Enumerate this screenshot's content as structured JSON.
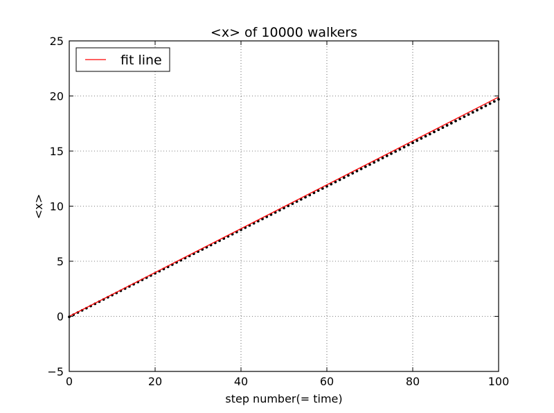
{
  "chart_data": {
    "type": "line",
    "title": "<x> of 10000 walkers",
    "xlabel": "step number(= time)",
    "ylabel": "<x>",
    "xlim": [
      0,
      100
    ],
    "ylim": [
      -5,
      25
    ],
    "xticks": [
      "0",
      "20",
      "40",
      "60",
      "80",
      "100"
    ],
    "yticks": [
      "−5",
      "0",
      "5",
      "10",
      "15",
      "20",
      "25"
    ],
    "grid": true,
    "legend": {
      "position": "top-left",
      "entries": [
        "fit line"
      ]
    },
    "series": [
      {
        "kind": "scatter",
        "color": "#000000",
        "x_start": 0,
        "x_end": 100,
        "x_step": 1,
        "y_start": -0.05,
        "y_end": 19.7
      },
      {
        "name": "fit line",
        "kind": "line",
        "color": "#ff0000",
        "x": [
          0,
          100
        ],
        "y": [
          0,
          19.9
        ]
      }
    ]
  }
}
